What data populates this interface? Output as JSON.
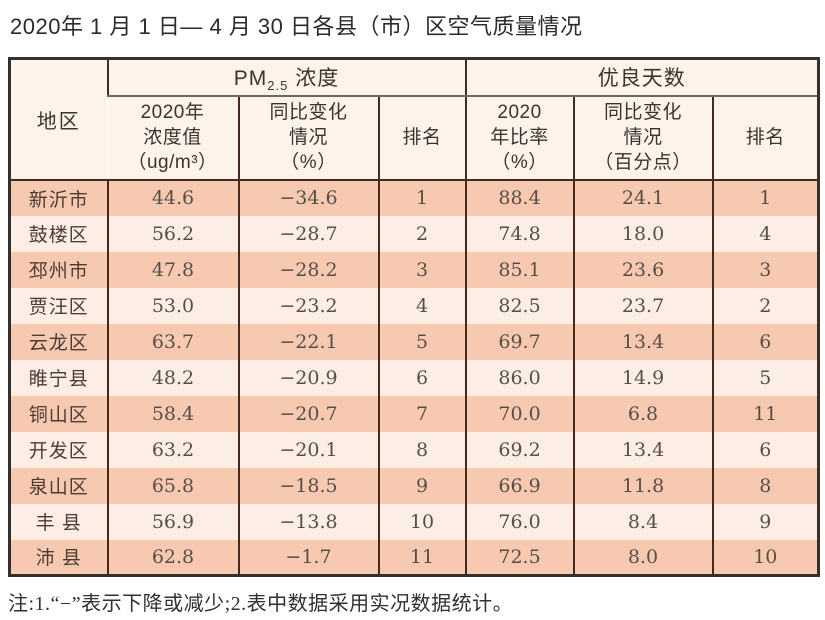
{
  "title": "2020年 1 月 1 日— 4 月 30 日各县（市）区空气质量情况",
  "note": "注:1.“−”表示下降或减少;2.表中数据采用实况数据统计。",
  "colors": {
    "row_odd": "#f8c9b1",
    "row_even": "#fceee4",
    "header_bg": "#fdf3ea",
    "border_inner": "#46291e",
    "border_outer": "#35302b"
  },
  "table": {
    "region_header": "地区",
    "group_headers": {
      "pm25_prefix": "PM",
      "pm25_subscript": "2.5",
      "pm25_suffix": " 浓度",
      "good_days": "优良天数"
    },
    "sub_headers": {
      "pm_value": "2020年\n浓度值\n（ug/m³）",
      "pm_change": "同比变化\n情况\n（%）",
      "pm_rank": "排名",
      "good_ratio": "2020\n年比率\n（%）",
      "good_change": "同比变化\n情况\n（百分点）",
      "good_rank": "排名"
    },
    "rows": [
      {
        "region": "新沂市",
        "pm_value": "44.6",
        "pm_change": "−34.6",
        "pm_rank": "1",
        "good_ratio": "88.4",
        "good_change": "24.1",
        "good_rank": "1"
      },
      {
        "region": "鼓楼区",
        "pm_value": "56.2",
        "pm_change": "−28.7",
        "pm_rank": "2",
        "good_ratio": "74.8",
        "good_change": "18.0",
        "good_rank": "4"
      },
      {
        "region": "邳州市",
        "pm_value": "47.8",
        "pm_change": "−28.2",
        "pm_rank": "3",
        "good_ratio": "85.1",
        "good_change": "23.6",
        "good_rank": "3"
      },
      {
        "region": "贾汪区",
        "pm_value": "53.0",
        "pm_change": "−23.2",
        "pm_rank": "4",
        "good_ratio": "82.5",
        "good_change": "23.7",
        "good_rank": "2"
      },
      {
        "region": "云龙区",
        "pm_value": "63.7",
        "pm_change": "−22.1",
        "pm_rank": "5",
        "good_ratio": "69.7",
        "good_change": "13.4",
        "good_rank": "6"
      },
      {
        "region": "睢宁县",
        "pm_value": "48.2",
        "pm_change": "−20.9",
        "pm_rank": "6",
        "good_ratio": "86.0",
        "good_change": "14.9",
        "good_rank": "5"
      },
      {
        "region": "铜山区",
        "pm_value": "58.4",
        "pm_change": "−20.7",
        "pm_rank": "7",
        "good_ratio": "70.0",
        "good_change": "6.8",
        "good_rank": "11"
      },
      {
        "region": "开发区",
        "pm_value": "63.2",
        "pm_change": "−20.1",
        "pm_rank": "8",
        "good_ratio": "69.2",
        "good_change": "13.4",
        "good_rank": "6"
      },
      {
        "region": "泉山区",
        "pm_value": "65.8",
        "pm_change": "−18.5",
        "pm_rank": "9",
        "good_ratio": "66.9",
        "good_change": "11.8",
        "good_rank": "8"
      },
      {
        "region": "丰 县",
        "pm_value": "56.9",
        "pm_change": "−13.8",
        "pm_rank": "10",
        "good_ratio": "76.0",
        "good_change": "8.4",
        "good_rank": "9"
      },
      {
        "region": "沛 县",
        "pm_value": "62.8",
        "pm_change": "−1.7",
        "pm_rank": "11",
        "good_ratio": "72.5",
        "good_change": "8.0",
        "good_rank": "10"
      }
    ]
  }
}
